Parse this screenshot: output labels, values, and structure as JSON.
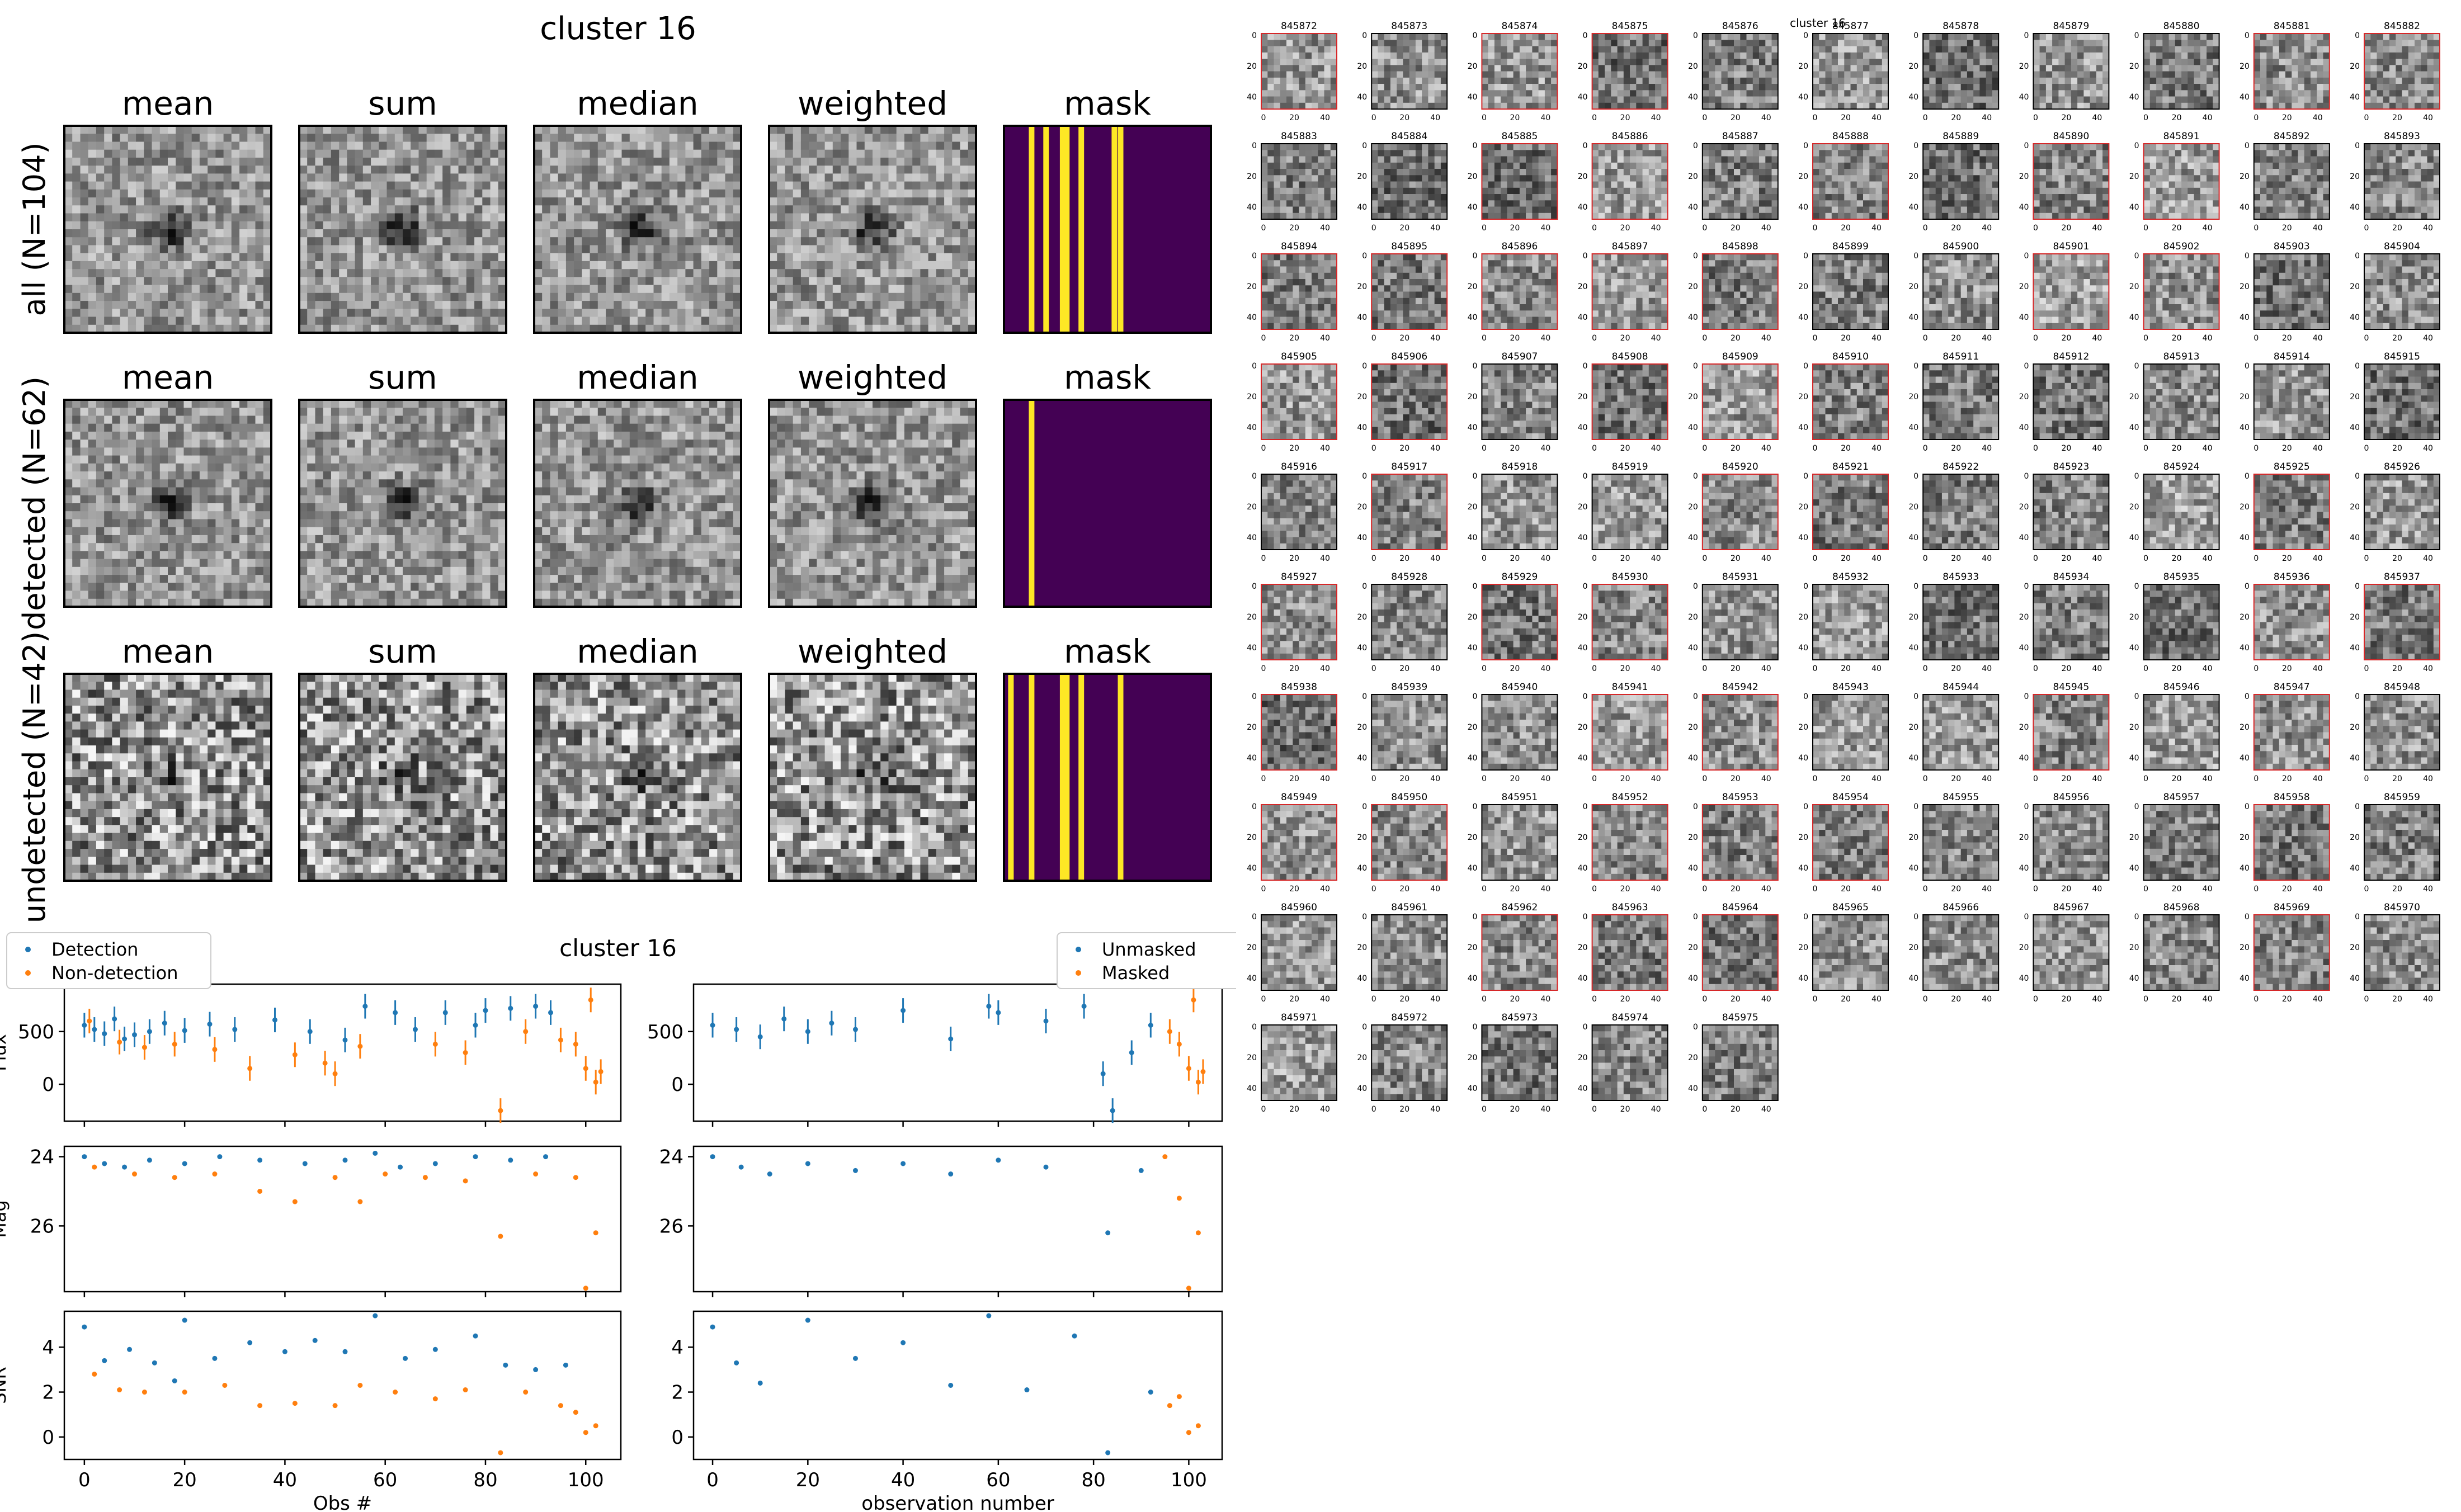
{
  "stack_figure": {
    "title": "cluster 16",
    "column_labels": [
      "mean",
      "sum",
      "median",
      "weighted",
      "mask"
    ],
    "row_labels": [
      "all (N=104)",
      "detected (N=62)",
      "undetected (N=42)"
    ],
    "mask_bars": [
      [
        0.12,
        0.19,
        0.27,
        0.29,
        0.36,
        0.52,
        0.55
      ],
      [
        0.12
      ],
      [
        0.02,
        0.12,
        0.27,
        0.29,
        0.36,
        0.55
      ]
    ],
    "colors": {
      "mask_bg": "#440154",
      "mask_bar": "#fde725",
      "detected": "#1f77b4",
      "undetected": "#ff7f0e"
    }
  },
  "lightcurve_figure": {
    "title": "cluster 16",
    "left_legend": [
      "Detection",
      "Non-detection"
    ],
    "right_legend": [
      "Unmasked",
      "Masked"
    ],
    "left_xlabel": "Obs #",
    "right_xlabel": "observation number",
    "ylabels": [
      "Flux",
      "Mag",
      "SNR"
    ]
  },
  "chart_data": [
    {
      "type": "scatter",
      "title": "cluster 16",
      "panel": "Flux vs Obs # (detection split)",
      "xlabel": "Obs #",
      "ylabel": "Flux",
      "xlim": [
        -4,
        107
      ],
      "ylim": [
        -350,
        950
      ],
      "xticks": [
        0,
        20,
        40,
        60,
        80,
        100
      ],
      "yticks": [
        0,
        500
      ],
      "series": [
        {
          "name": "Detection",
          "x": [
            0,
            2,
            4,
            6,
            8,
            10,
            13,
            16,
            20,
            25,
            30,
            38,
            45,
            52,
            56,
            62,
            66,
            72,
            78,
            80,
            85,
            90,
            93
          ],
          "y": [
            560,
            520,
            480,
            620,
            430,
            470,
            500,
            580,
            510,
            570,
            520,
            610,
            500,
            420,
            740,
            680,
            520,
            680,
            560,
            700,
            720,
            740,
            680
          ]
        },
        {
          "name": "Non-detection",
          "x": [
            1,
            7,
            12,
            18,
            26,
            33,
            42,
            48,
            50,
            55,
            70,
            76,
            83,
            88,
            95,
            98,
            100,
            101,
            102,
            103
          ],
          "y": [
            600,
            400,
            350,
            380,
            330,
            150,
            280,
            200,
            100,
            360,
            380,
            300,
            -250,
            500,
            420,
            380,
            150,
            800,
            20,
            120
          ]
        }
      ]
    },
    {
      "type": "scatter",
      "panel": "Mag vs Obs # (detection split)",
      "ylabel": "Mag",
      "ylim": [
        27.9,
        23.7
      ],
      "yticks": [
        24,
        26
      ],
      "series": [
        {
          "name": "Detection",
          "x": [
            0,
            4,
            8,
            13,
            20,
            27,
            35,
            44,
            52,
            58,
            63,
            70,
            78,
            85,
            92
          ],
          "y": [
            24.0,
            24.2,
            24.3,
            24.1,
            24.2,
            24.0,
            24.1,
            24.2,
            24.1,
            23.9,
            24.3,
            24.2,
            24.0,
            24.1,
            24.0
          ]
        },
        {
          "name": "Non-detection",
          "x": [
            2,
            10,
            18,
            26,
            35,
            42,
            50,
            55,
            60,
            68,
            76,
            83,
            90,
            98,
            100,
            102
          ],
          "y": [
            24.3,
            24.5,
            24.6,
            24.5,
            25.0,
            25.3,
            24.6,
            25.3,
            24.5,
            24.6,
            24.7,
            26.3,
            24.5,
            24.6,
            27.8,
            26.2
          ]
        }
      ]
    },
    {
      "type": "scatter",
      "panel": "SNR vs Obs # (detection split)",
      "ylabel": "SNR",
      "ylim": [
        -1,
        5.6
      ],
      "yticks": [
        0,
        2,
        4
      ],
      "series": [
        {
          "name": "Detection",
          "x": [
            0,
            4,
            9,
            14,
            18,
            20,
            26,
            33,
            40,
            46,
            52,
            58,
            64,
            70,
            78,
            84,
            90,
            96
          ],
          "y": [
            4.9,
            3.4,
            3.9,
            3.3,
            2.5,
            5.2,
            3.5,
            4.2,
            3.8,
            4.3,
            3.8,
            5.4,
            3.5,
            3.9,
            4.5,
            3.2,
            3.0,
            3.2
          ]
        },
        {
          "name": "Non-detection",
          "x": [
            2,
            7,
            12,
            20,
            28,
            35,
            42,
            50,
            55,
            62,
            70,
            76,
            83,
            88,
            95,
            98,
            100,
            102
          ],
          "y": [
            2.8,
            2.1,
            2.0,
            2.0,
            2.3,
            1.4,
            1.5,
            1.4,
            2.3,
            2.0,
            1.7,
            2.1,
            -0.7,
            2.0,
            1.4,
            1.1,
            0.2,
            0.5
          ]
        }
      ]
    },
    {
      "type": "scatter",
      "panel": "Flux vs observation number (mask split)",
      "xlabel": "observation number",
      "ylabel": "",
      "series": [
        {
          "name": "Unmasked",
          "x": [
            0,
            5,
            10,
            15,
            20,
            25,
            30,
            40,
            50,
            58,
            60,
            70,
            78,
            82,
            84,
            88,
            92
          ],
          "y": [
            560,
            520,
            450,
            620,
            500,
            580,
            520,
            700,
            430,
            740,
            680,
            600,
            740,
            100,
            -250,
            300,
            560
          ]
        },
        {
          "name": "Masked",
          "x": [
            96,
            98,
            100,
            101,
            102,
            103
          ],
          "y": [
            500,
            380,
            150,
            800,
            20,
            120
          ]
        }
      ]
    },
    {
      "type": "scatter",
      "panel": "Mag vs observation number (mask split)",
      "series": [
        {
          "name": "Unmasked",
          "x": [
            0,
            6,
            12,
            20,
            30,
            40,
            50,
            60,
            70,
            83,
            90
          ],
          "y": [
            24.0,
            24.3,
            24.5,
            24.2,
            24.4,
            24.2,
            24.5,
            24.1,
            24.3,
            26.2,
            24.4
          ]
        },
        {
          "name": "Masked",
          "x": [
            95,
            98,
            100,
            102
          ],
          "y": [
            24.0,
            25.2,
            27.8,
            26.2
          ]
        }
      ]
    },
    {
      "type": "scatter",
      "panel": "SNR vs observation number (mask split)",
      "series": [
        {
          "name": "Unmasked",
          "x": [
            0,
            5,
            10,
            20,
            30,
            40,
            50,
            58,
            66,
            76,
            83,
            92
          ],
          "y": [
            4.9,
            3.3,
            2.4,
            5.2,
            3.5,
            4.2,
            2.3,
            5.4,
            2.1,
            4.5,
            -0.7,
            2.0
          ]
        },
        {
          "name": "Masked",
          "x": [
            96,
            98,
            100,
            102
          ],
          "y": [
            1.4,
            1.8,
            0.2,
            0.5
          ]
        }
      ]
    }
  ],
  "cutout_grid": {
    "overlay_title": "cluster 16",
    "tick_labels_y": [
      "0",
      "20",
      "40"
    ],
    "tick_labels_x": [
      "0",
      "20",
      "40"
    ],
    "ids": [
      "845872",
      "845873",
      "845874",
      "845875",
      "845876",
      "845877",
      "845878",
      "845879",
      "845880",
      "845881",
      "845882",
      "845883",
      "845884",
      "845885",
      "845886",
      "845887",
      "845888",
      "845889",
      "845890",
      "845891",
      "845892",
      "845893",
      "845894",
      "845895",
      "845896",
      "845897",
      "845898",
      "845899",
      "845900",
      "845901",
      "845902",
      "845903",
      "845904",
      "845905",
      "845906",
      "845907",
      "845908",
      "845909",
      "845910",
      "845911",
      "845912",
      "845913",
      "845914",
      "845915",
      "845916",
      "845917",
      "845918",
      "845919",
      "845920",
      "845921",
      "845922",
      "845923",
      "845924",
      "845925",
      "845926",
      "845927",
      "845928",
      "845929",
      "845930",
      "845931",
      "845932",
      "845933",
      "845934",
      "845935",
      "845936",
      "845937",
      "845938",
      "845939",
      "845940",
      "845941",
      "845942",
      "845943",
      "845944",
      "845945",
      "845946",
      "845947",
      "845948",
      "845949",
      "845950",
      "845951",
      "845952",
      "845953",
      "845954",
      "845955",
      "845956",
      "845957",
      "845958",
      "845959",
      "845960",
      "845961",
      "845962",
      "845963",
      "845964",
      "845965",
      "845966",
      "845967",
      "845968",
      "845969",
      "845970",
      "845971",
      "845972",
      "845973",
      "845974",
      "845975"
    ],
    "highlighted": [
      "845872",
      "845874",
      "845875",
      "845881",
      "845882",
      "845885",
      "845886",
      "845888",
      "845890",
      "845891",
      "845894",
      "845895",
      "845896",
      "845897",
      "845898",
      "845901",
      "845902",
      "845905",
      "845906",
      "845908",
      "845909",
      "845910",
      "845917",
      "845920",
      "845921",
      "845925",
      "845927",
      "845929",
      "845930",
      "845936",
      "845937",
      "845938",
      "845941",
      "845942",
      "845945",
      "845947",
      "845949",
      "845950",
      "845952",
      "845953",
      "845954",
      "845958",
      "845962",
      "845963",
      "845964",
      "845969"
    ],
    "colors": {
      "highlight_border": "#d62728"
    }
  }
}
